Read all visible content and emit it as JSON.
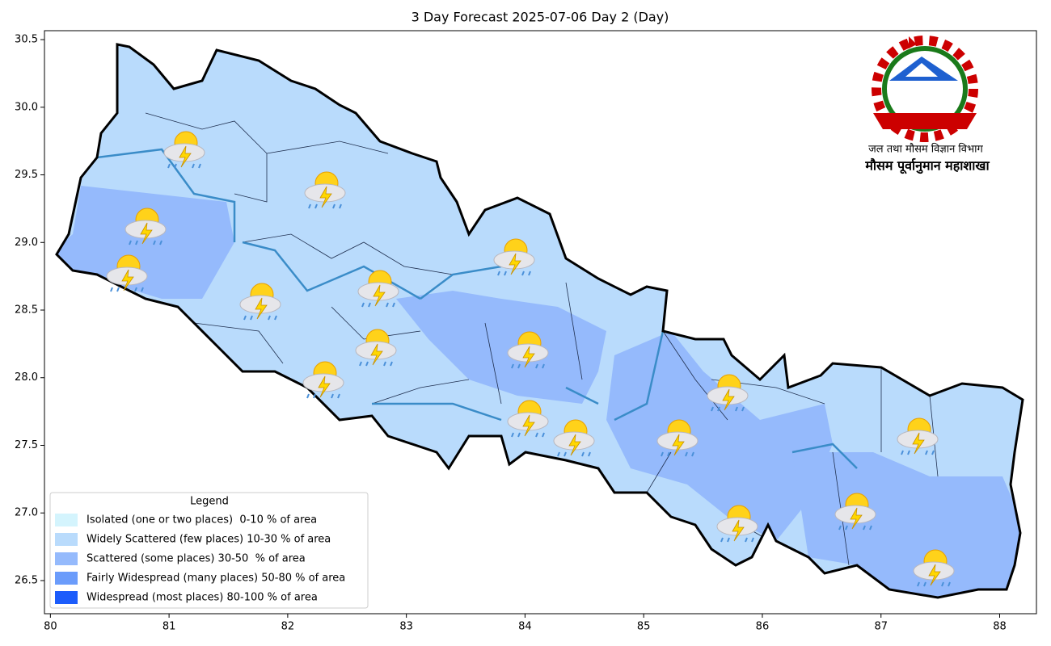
{
  "chart_data": {
    "type": "map",
    "title": "3 Day Forecast 2025-07-06 Day 2 (Day)",
    "xlim": [
      79.95,
      88.31
    ],
    "ylim": [
      26.255,
      30.566
    ],
    "xticks": [
      80,
      81,
      82,
      83,
      84,
      85,
      86,
      87,
      88
    ],
    "yticks": [
      26.5,
      {
        "value": 27,
        "label": "27.0"
      },
      27.5,
      {
        "value": 28,
        "label": "28.0"
      },
      28.5,
      {
        "value": 29,
        "label": "29.0"
      },
      29.5,
      {
        "value": 30,
        "label": "30.0"
      },
      30.5
    ],
    "legend": {
      "title": "Legend",
      "position": "lower left",
      "items": [
        {
          "name": "Isolated (one or two places)  0-10 % of area",
          "color": "#d4f4fd"
        },
        {
          "name": "Widely Scattered (few places) 10-30 % of area",
          "color": "#b9dbfc"
        },
        {
          "name": "Scattered (some places) 30-50  % of area",
          "color": "#95bafc"
        },
        {
          "name": "Fairly Widespread (many places) 50-80 % of area",
          "color": "#6b9cfb"
        },
        {
          "name": "Widespread (most places) 80-100 % of area",
          "color": "#1c5cfb"
        }
      ]
    },
    "logo": {
      "line1": "जल तथा मौसम विज्ञान विभाग",
      "line2": "मौसम पूर्वानुमान महाशाखा"
    }
  }
}
